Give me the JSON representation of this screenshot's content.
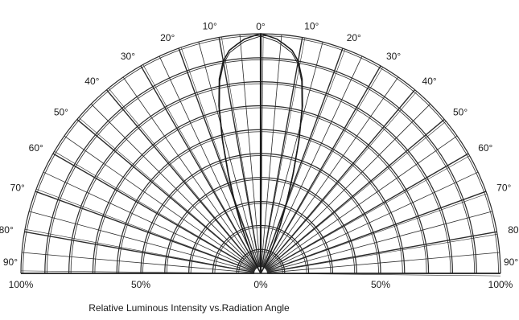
{
  "chart_data": {
    "type": "polar",
    "title": "Relative Luminous Intensity vs.Radiation Angle",
    "angle_labels": [
      "0°",
      "10°",
      "20°",
      "30°",
      "40°",
      "50°",
      "60°",
      "70°",
      "80°",
      "90°"
    ],
    "radial_tick_labels": [
      "100%",
      "50%",
      "0%",
      "50%",
      "100%"
    ],
    "angle_step_deg": 10,
    "angle_range_deg": [
      -90,
      90
    ],
    "radial_range_pct": [
      0,
      100
    ],
    "series": [
      {
        "angle_deg": [
          0,
          2,
          4,
          6,
          8,
          10,
          12,
          14,
          16,
          18,
          20,
          22,
          24,
          26,
          28,
          30
        ],
        "relative_intensity": [
          1.0,
          0.99,
          0.98,
          0.96,
          0.94,
          0.9,
          0.83,
          0.72,
          0.58,
          0.44,
          0.32,
          0.22,
          0.14,
          0.08,
          0.04,
          0.0
        ]
      }
    ]
  }
}
